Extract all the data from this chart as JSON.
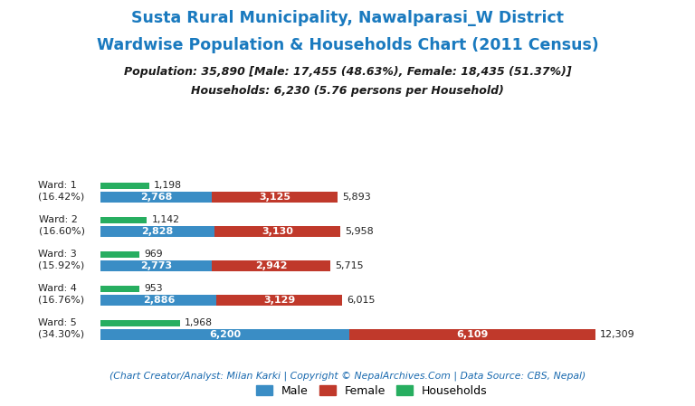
{
  "title_line1": "Susta Rural Municipality, Nawalparasi_W District",
  "title_line2": "Wardwise Population & Households Chart (2011 Census)",
  "subtitle_line1": "Population: 35,890 [Male: 17,455 (48.63%), Female: 18,435 (51.37%)]",
  "subtitle_line2": "Households: 6,230 (5.76 persons per Household)",
  "footer": "(Chart Creator/Analyst: Milan Karki | Copyright © NepalArchives.Com | Data Source: CBS, Nepal)",
  "wards": [
    {
      "label": "Ward: 1\n(16.42%)",
      "male": 2768,
      "female": 3125,
      "households": 1198,
      "total": 5893
    },
    {
      "label": "Ward: 2\n(16.60%)",
      "male": 2828,
      "female": 3130,
      "households": 1142,
      "total": 5958
    },
    {
      "label": "Ward: 3\n(15.92%)",
      "male": 2773,
      "female": 2942,
      "households": 969,
      "total": 5715
    },
    {
      "label": "Ward: 4\n(16.76%)",
      "male": 2886,
      "female": 3129,
      "households": 953,
      "total": 6015
    },
    {
      "label": "Ward: 5\n(34.30%)",
      "male": 6200,
      "female": 6109,
      "households": 1968,
      "total": 12309
    }
  ],
  "colors": {
    "male": "#3a8dc5",
    "female": "#c0392b",
    "households": "#27ae60",
    "title": "#1a7abf",
    "subtitle": "#1a1a1a",
    "footer": "#1a6aaf",
    "background": "#ffffff"
  },
  "xlim": 13500,
  "title_fontsize": 12.5,
  "subtitle_fontsize": 9.0,
  "footer_fontsize": 7.8,
  "label_fontsize": 8.0,
  "bar_label_fontsize": 8.0,
  "total_label_fontsize": 8.0,
  "hh_label_fontsize": 7.8,
  "legend_fontsize": 9.0
}
